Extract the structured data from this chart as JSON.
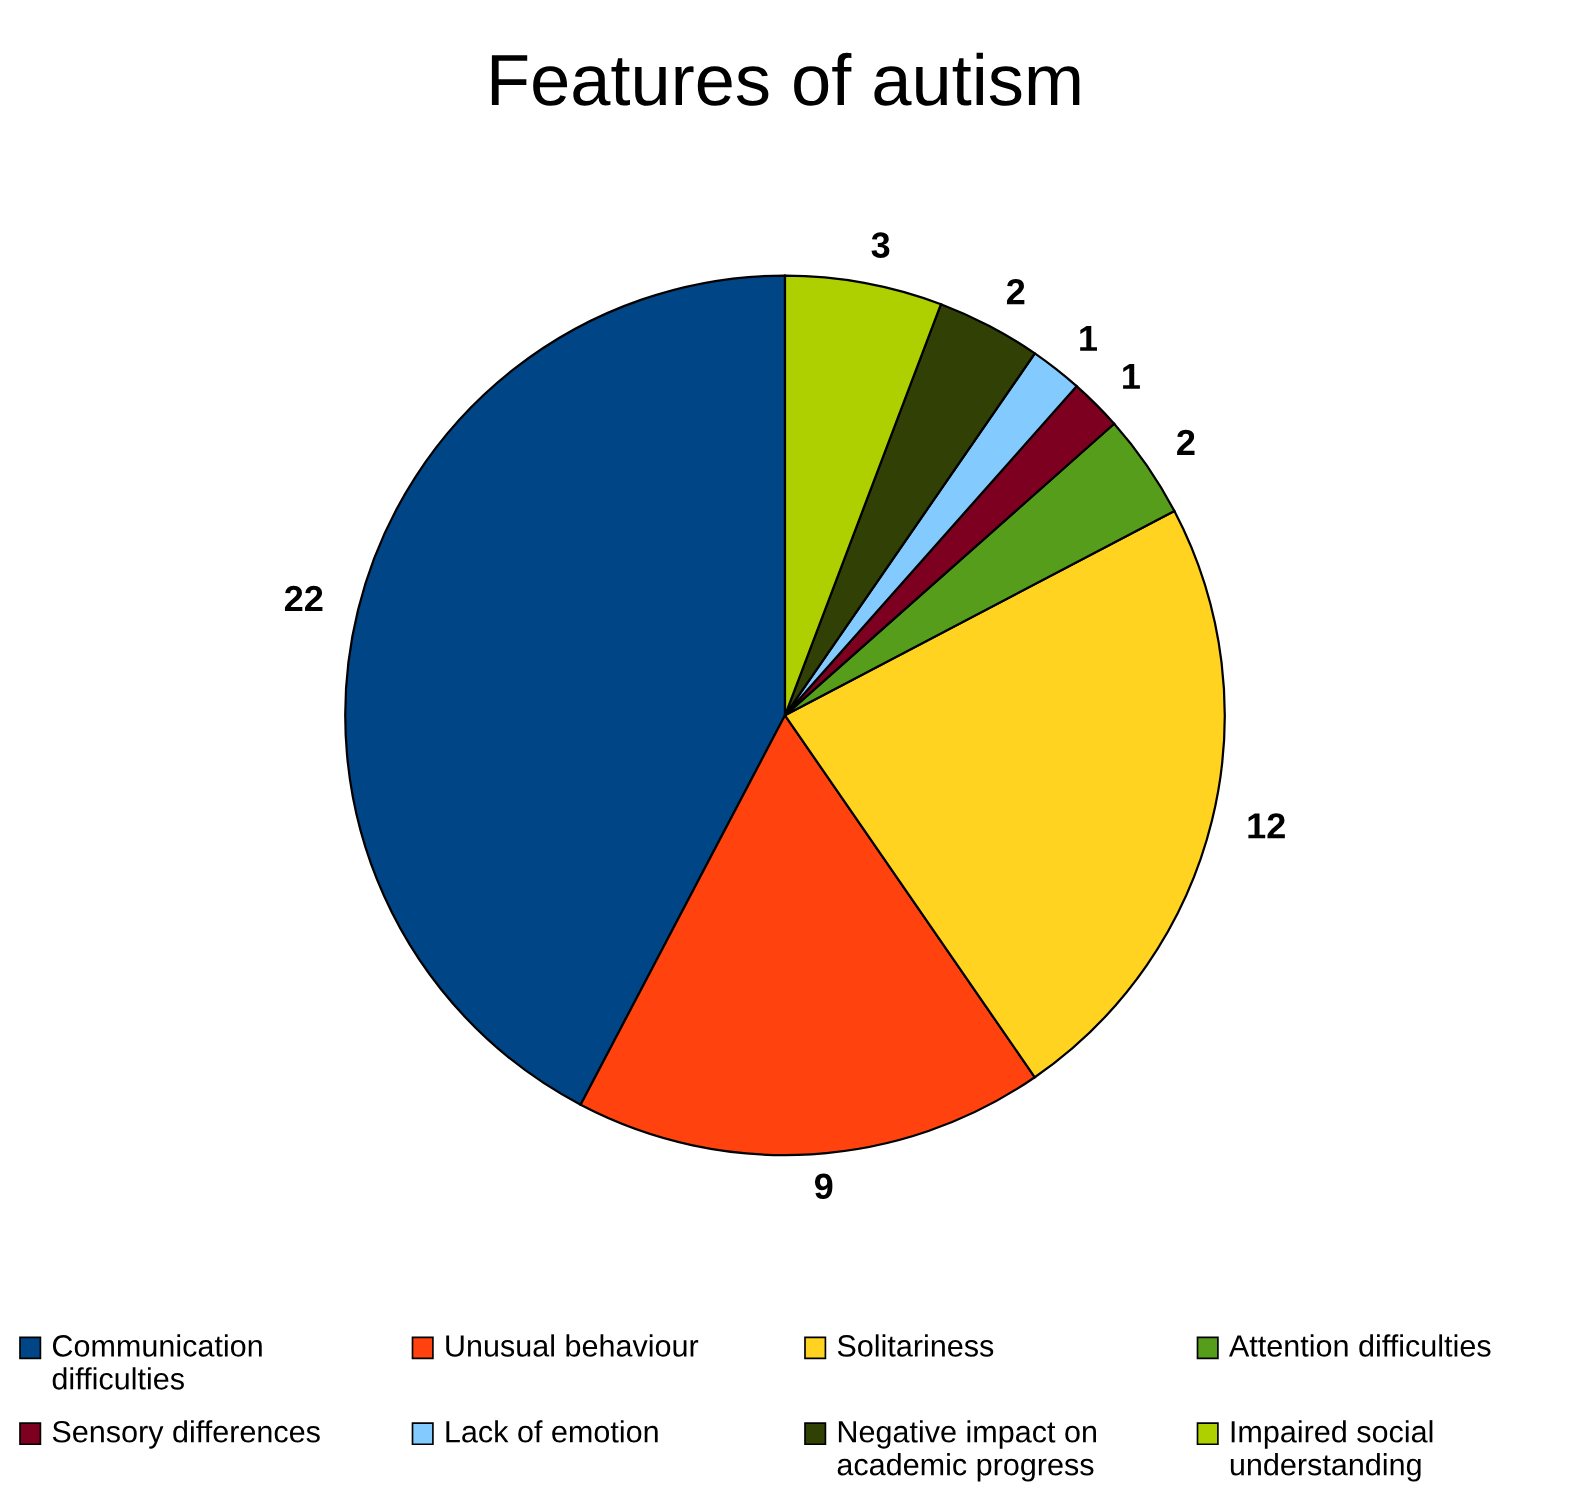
{
  "chart_data": {
    "type": "pie",
    "title": "Features of autism",
    "categories": [
      "Communication difficulties",
      "Unusual behaviour",
      "Solitariness",
      "Attention difficulties",
      "Sensory differences",
      "Lack of emotion",
      "Negative impact on academic progress",
      "Impaired social understanding"
    ],
    "values": [
      22,
      9,
      12,
      2,
      1,
      1,
      2,
      3
    ],
    "colors": [
      "#004586",
      "#ff420e",
      "#ffd320",
      "#579d1c",
      "#7e0021",
      "#83caff",
      "#314004",
      "#aecf00"
    ],
    "data_labels": true,
    "legend": "bottom"
  }
}
